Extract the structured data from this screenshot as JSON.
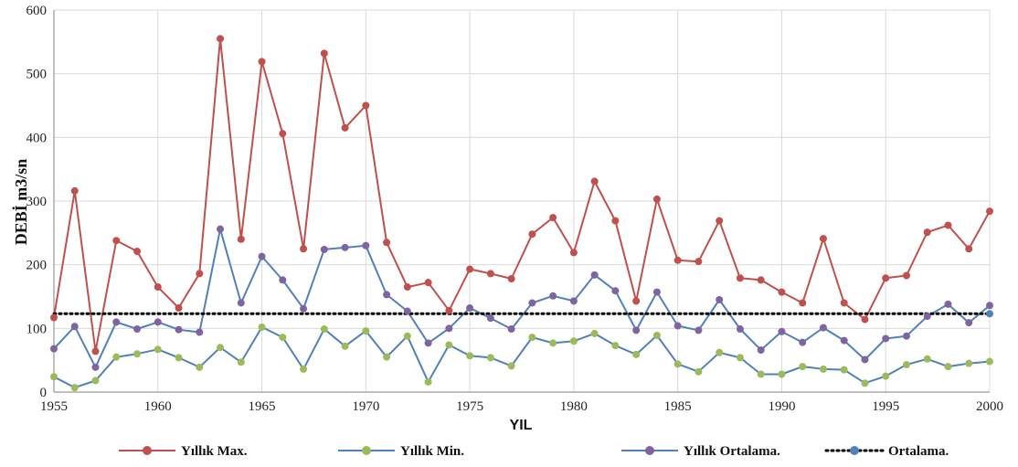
{
  "chart_data": {
    "type": "line",
    "xlabel": "YIL",
    "ylabel": "DEBİ  m3/sn",
    "xlim": [
      1955,
      2000
    ],
    "ylim": [
      0,
      600
    ],
    "xticks": [
      "1955",
      "1960",
      "1965",
      "1970",
      "1975",
      "1980",
      "1985",
      "1990",
      "1995",
      "2000"
    ],
    "yticks": [
      "0",
      "100",
      "200",
      "300",
      "400",
      "500",
      "600"
    ],
    "grid": true,
    "legend_position": "bottom",
    "x": [
      1955,
      1956,
      1957,
      1958,
      1959,
      1960,
      1961,
      1962,
      1963,
      1964,
      1965,
      1966,
      1967,
      1968,
      1969,
      1970,
      1971,
      1972,
      1973,
      1974,
      1975,
      1976,
      1977,
      1978,
      1979,
      1980,
      1981,
      1982,
      1983,
      1984,
      1985,
      1986,
      1987,
      1988,
      1989,
      1990,
      1991,
      1992,
      1993,
      1994,
      1995,
      1996,
      1997,
      1998,
      1999,
      2000
    ],
    "series": [
      {
        "name": "Yıllık Max.",
        "line_color": "#c0504d",
        "marker_color": "#c0504d",
        "dotted": false,
        "values": [
          117,
          316,
          64,
          238,
          221,
          165,
          132,
          186,
          555,
          240,
          519,
          406,
          225,
          532,
          415,
          450,
          235,
          165,
          172,
          128,
          193,
          186,
          178,
          248,
          274,
          219,
          331,
          269,
          143,
          303,
          207,
          205,
          269,
          179,
          176,
          157,
          140,
          241,
          140,
          114,
          179,
          183,
          251,
          262,
          225,
          284
        ]
      },
      {
        "name": "Yıllık Min.",
        "line_color": "#4f81bd",
        "marker_color": "#9bbb59",
        "dotted": false,
        "values": [
          24,
          7,
          18,
          55,
          60,
          67,
          54,
          39,
          70,
          47,
          102,
          86,
          36,
          99,
          72,
          96,
          55,
          88,
          16,
          74,
          57,
          54,
          41,
          86,
          77,
          80,
          92,
          73,
          59,
          89,
          44,
          32,
          62,
          54,
          28,
          28,
          40,
          36,
          35,
          14,
          25,
          43,
          52,
          40,
          45,
          48
        ]
      },
      {
        "name": "Yıllık Ortalama.",
        "line_color": "#4f81bd",
        "marker_color": "#8064a2",
        "dotted": false,
        "values": [
          68,
          103,
          39,
          110,
          99,
          110,
          98,
          94,
          256,
          140,
          213,
          176,
          131,
          224,
          227,
          230,
          153,
          127,
          77,
          100,
          132,
          116,
          99,
          140,
          151,
          143,
          184,
          159,
          97,
          157,
          104,
          97,
          145,
          99,
          66,
          95,
          78,
          101,
          81,
          51,
          84,
          88,
          119,
          138,
          109,
          136
        ]
      },
      {
        "name": "Ortalama.",
        "line_color": "#000000",
        "marker_color": "#4f81bd",
        "dotted": true,
        "values": [
          123,
          123,
          123,
          123,
          123,
          123,
          123,
          123,
          123,
          123,
          123,
          123,
          123,
          123,
          123,
          123,
          123,
          123,
          123,
          123,
          123,
          123,
          123,
          123,
          123,
          123,
          123,
          123,
          123,
          123,
          123,
          123,
          123,
          123,
          123,
          123,
          123,
          123,
          123,
          123,
          123,
          123,
          123,
          123,
          123,
          123
        ]
      }
    ]
  }
}
